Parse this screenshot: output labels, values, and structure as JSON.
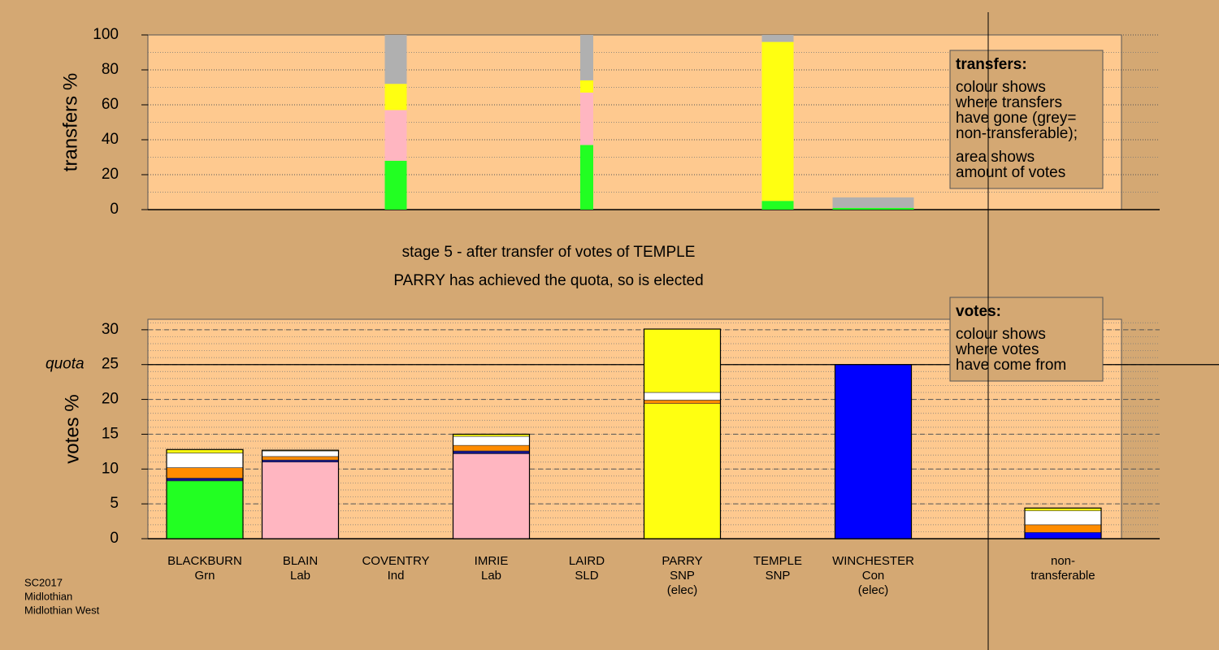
{
  "chart_data": [
    {
      "type": "stacked-bar",
      "ylabel": "transfers %",
      "ylim": [
        0,
        100
      ],
      "yticks": [
        0,
        20,
        40,
        60,
        80,
        100
      ],
      "minor_grid_step": 10,
      "grid": true,
      "legend_title": "transfers:",
      "legend_lines": [
        "colour shows",
        "where transfers",
        "have gone (grey=",
        "non-transferable);",
        "area shows",
        "amount of votes"
      ],
      "bar_widths": [
        null,
        null,
        0.27,
        null,
        0.16,
        null,
        0.39,
        1,
        null
      ],
      "bars": [
        null,
        null,
        {
          "segments": [
            {
              "color": "#22ff22",
              "value": 28
            },
            {
              "color": "#ffb6c1",
              "value": 29
            },
            {
              "color": "#ffff11",
              "value": 15
            },
            {
              "color": "#b0b0b0",
              "value": 28
            }
          ]
        },
        null,
        {
          "segments": [
            {
              "color": "#22ff22",
              "value": 37
            },
            {
              "color": "#ffb6c1",
              "value": 30
            },
            {
              "color": "#ffff11",
              "value": 7
            },
            {
              "color": "#b0b0b0",
              "value": 26
            }
          ]
        },
        null,
        {
          "segments": [
            {
              "color": "#22ff22",
              "value": 5
            },
            {
              "color": "#ffff11",
              "value": 91
            },
            {
              "color": "#b0b0b0",
              "value": 4
            }
          ]
        },
        {
          "segments": [
            {
              "color": "#22ff22",
              "value": 1
            },
            {
              "color": "#b0b0b0",
              "value": 6
            }
          ]
        },
        null
      ]
    },
    {
      "type": "stacked-bar",
      "ylabel": "votes %",
      "ylim": [
        0,
        31.5
      ],
      "yticks": [
        0,
        5,
        10,
        15,
        20,
        25,
        30
      ],
      "minor_grid_step": 1,
      "grid": true,
      "quota": {
        "value": 25,
        "label": "quota"
      },
      "legend_title": "votes:",
      "legend_lines": [
        "colour shows",
        "where votes",
        "have come from"
      ],
      "stage_lines": [
        "stage 5 - after transfer of votes of TEMPLE",
        "PARRY has achieved the quota, so is elected"
      ],
      "categories": [
        [
          "BLACKBURN",
          "Grn"
        ],
        [
          "BLAIN",
          "Lab"
        ],
        [
          "COVENTRY",
          "Ind"
        ],
        [
          "IMRIE",
          "Lab"
        ],
        [
          "LAIRD",
          "SLD"
        ],
        [
          "PARRY",
          "SNP",
          "(elec)"
        ],
        [
          "TEMPLE",
          "SNP"
        ],
        [
          "WINCHESTER",
          "Con",
          "(elec)"
        ],
        [
          "non-",
          "transferable"
        ]
      ],
      "bars": [
        {
          "segments": [
            {
              "color": "#22ff22",
              "value": 8.3
            },
            {
              "color": "#111188",
              "value": 0.4
            },
            {
              "color": "#ff8c00",
              "value": 1.5
            },
            {
              "color": "#ffffff",
              "value": 2.1
            },
            {
              "color": "#ffff11",
              "value": 0.5
            }
          ]
        },
        {
          "segments": [
            {
              "color": "#ffb6c1",
              "value": 11.0
            },
            {
              "color": "#111188",
              "value": 0.3
            },
            {
              "color": "#ff8c00",
              "value": 0.5
            },
            {
              "color": "#ffffff",
              "value": 0.8
            },
            {
              "color": "#ffff11",
              "value": 0.1
            }
          ]
        },
        {
          "segments": []
        },
        {
          "segments": [
            {
              "color": "#ffb6c1",
              "value": 12.2
            },
            {
              "color": "#111188",
              "value": 0.4
            },
            {
              "color": "#ff8c00",
              "value": 0.8
            },
            {
              "color": "#ffffff",
              "value": 1.3
            },
            {
              "color": "#ffff11",
              "value": 0.3
            }
          ]
        },
        {
          "segments": []
        },
        {
          "segments": [
            {
              "color": "#ffff11",
              "value": 19.4
            },
            {
              "color": "#ff8c00",
              "value": 0.5
            },
            {
              "color": "#ffffff",
              "value": 1.1
            },
            {
              "color": "#ffff11",
              "value": 9.1
            }
          ]
        },
        {
          "segments": []
        },
        {
          "segments": [
            {
              "color": "#0000ff",
              "value": 25
            }
          ]
        },
        {
          "segments": [
            {
              "color": "#0000ff",
              "value": 0.9
            },
            {
              "color": "#ff8c00",
              "value": 1.1
            },
            {
              "color": "#ffffff",
              "value": 2.0
            },
            {
              "color": "#ffff11",
              "value": 0.4
            }
          ]
        }
      ]
    }
  ],
  "footer": [
    "SC2017",
    "Midlothian",
    "Midlothian West"
  ]
}
